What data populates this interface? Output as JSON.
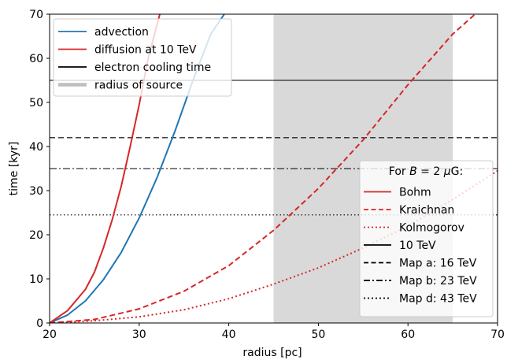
{
  "chart_data": {
    "type": "line",
    "xlabel": "radius [pc]",
    "ylabel": "time [kyr]",
    "xlim": [
      20,
      70
    ],
    "ylim": [
      0,
      70
    ],
    "xticks": [
      20,
      30,
      40,
      50,
      60,
      70
    ],
    "yticks": [
      0,
      10,
      20,
      30,
      40,
      50,
      60,
      70
    ],
    "x_tick_labels": [
      "20",
      "30",
      "40",
      "50",
      "60",
      "70"
    ],
    "y_tick_labels": [
      "0",
      "10",
      "20",
      "30",
      "40",
      "50",
      "60",
      "70"
    ],
    "grid": false,
    "shaded_region": {
      "x_range": [
        45,
        65
      ],
      "color": "#d9d9d9",
      "label": "radius of source"
    },
    "series": [
      {
        "name": "advection",
        "color": "#1f77b4",
        "linestyle": "solid",
        "x": [
          20,
          22,
          24,
          26,
          28,
          30,
          32,
          34,
          36,
          38,
          39.5
        ],
        "y": [
          0,
          1.8,
          5.0,
          9.8,
          16.0,
          23.8,
          33.0,
          43.5,
          55.0,
          65.5,
          70
        ]
      },
      {
        "name": "diffusion at 10 TeV",
        "color": "#d62728",
        "linestyle": "solid",
        "x": [
          20,
          22,
          24,
          25,
          26,
          27,
          28,
          29,
          30,
          31,
          32.3
        ],
        "y": [
          0,
          2.8,
          7.6,
          11.5,
          17.0,
          23.5,
          31.0,
          40.0,
          49.5,
          60.0,
          70
        ]
      },
      {
        "name": "Kraichnan",
        "color": "#d62728",
        "linestyle": "dashed",
        "x": [
          20,
          25,
          30,
          35,
          40,
          45,
          50,
          55,
          60,
          65,
          67.5
        ],
        "y": [
          0,
          0.8,
          3.2,
          7.2,
          13.0,
          21.0,
          30.5,
          41.5,
          54.0,
          65.5,
          70
        ]
      },
      {
        "name": "Kolmogorov",
        "color": "#d62728",
        "linestyle": "dotted",
        "x": [
          20,
          25,
          30,
          35,
          40,
          45,
          50,
          55,
          60,
          65,
          70
        ],
        "y": [
          0,
          0.5,
          1.4,
          3.0,
          5.5,
          8.8,
          12.5,
          17.0,
          22.0,
          28.0,
          34.5
        ]
      }
    ],
    "hlines": [
      {
        "name": "10 TeV",
        "y": 55,
        "linestyle": "solid",
        "color": "#000000"
      },
      {
        "name": "Map a: 16 TeV",
        "y": 42,
        "linestyle": "dashed",
        "color": "#000000"
      },
      {
        "name": "Map b: 23 TeV",
        "y": 35,
        "linestyle": "dashdot",
        "color": "#000000"
      },
      {
        "name": "Map d: 43 TeV",
        "y": 24.5,
        "linestyle": "dotted",
        "color": "#000000"
      }
    ],
    "legend_top_left": {
      "placement": "upper left",
      "entries": [
        {
          "label": "advection",
          "color": "#1f77b4",
          "linestyle": "solid"
        },
        {
          "label": "diffusion at 10 TeV",
          "color": "#d62728",
          "linestyle": "solid"
        },
        {
          "label": "electron cooling time",
          "color": "#000000",
          "linestyle": "solid"
        },
        {
          "label": "radius of source",
          "color": "#bfbfbf",
          "linestyle": "thick"
        }
      ]
    },
    "legend_bottom_right": {
      "placement": "lower right",
      "title_prefix": "For ",
      "title_var": "B",
      "title_mid": " = 2 ",
      "title_unit_greek": "μ",
      "title_unit": "G:",
      "entries": [
        {
          "label": "Bohm",
          "color": "#d62728",
          "linestyle": "solid"
        },
        {
          "label": "Kraichnan",
          "color": "#d62728",
          "linestyle": "dashed"
        },
        {
          "label": "Kolmogorov",
          "color": "#d62728",
          "linestyle": "dotted"
        },
        {
          "label": "10 TeV",
          "color": "#000000",
          "linestyle": "solid"
        },
        {
          "label": "Map a: 16 TeV",
          "color": "#000000",
          "linestyle": "dashed"
        },
        {
          "label": "Map b: 23 TeV",
          "color": "#000000",
          "linestyle": "dashdot"
        },
        {
          "label": "Map d: 43 TeV",
          "color": "#000000",
          "linestyle": "dotted"
        }
      ]
    }
  }
}
